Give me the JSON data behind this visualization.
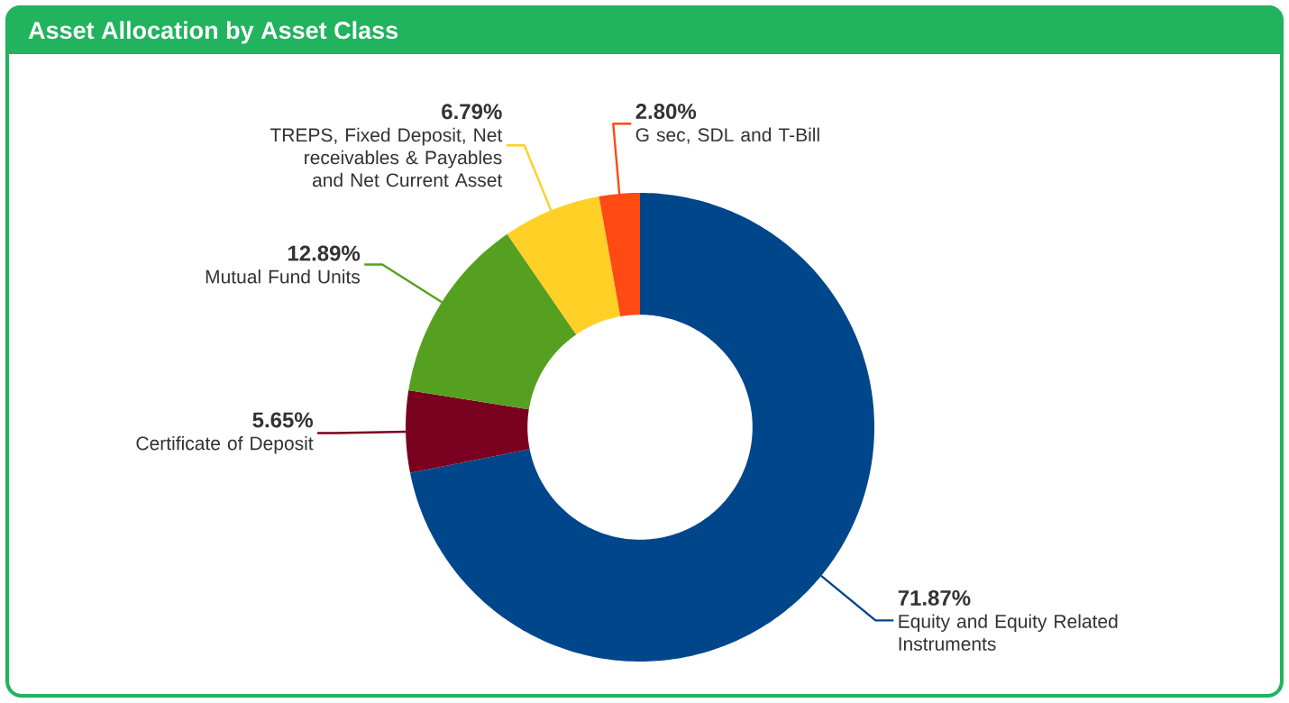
{
  "chart_data": {
    "type": "donut",
    "title": "Asset Allocation by Asset Class",
    "categories": [
      "Equity and Equity Related Instruments",
      "Certificate of Deposit",
      "Mutual Fund Units",
      "TREPS, Fixed Deposit, Net receivables & Payables and Net Current Asset",
      "G sec, SDL and T-Bill"
    ],
    "values": [
      71.87,
      5.65,
      12.89,
      6.79,
      2.8
    ],
    "value_labels": [
      "71.87%",
      "5.65%",
      "12.89%",
      "6.79%",
      "2.80%"
    ],
    "colors": [
      "#00468b",
      "#7a0020",
      "#55a020",
      "#ffd026",
      "#ff4a14"
    ]
  }
}
